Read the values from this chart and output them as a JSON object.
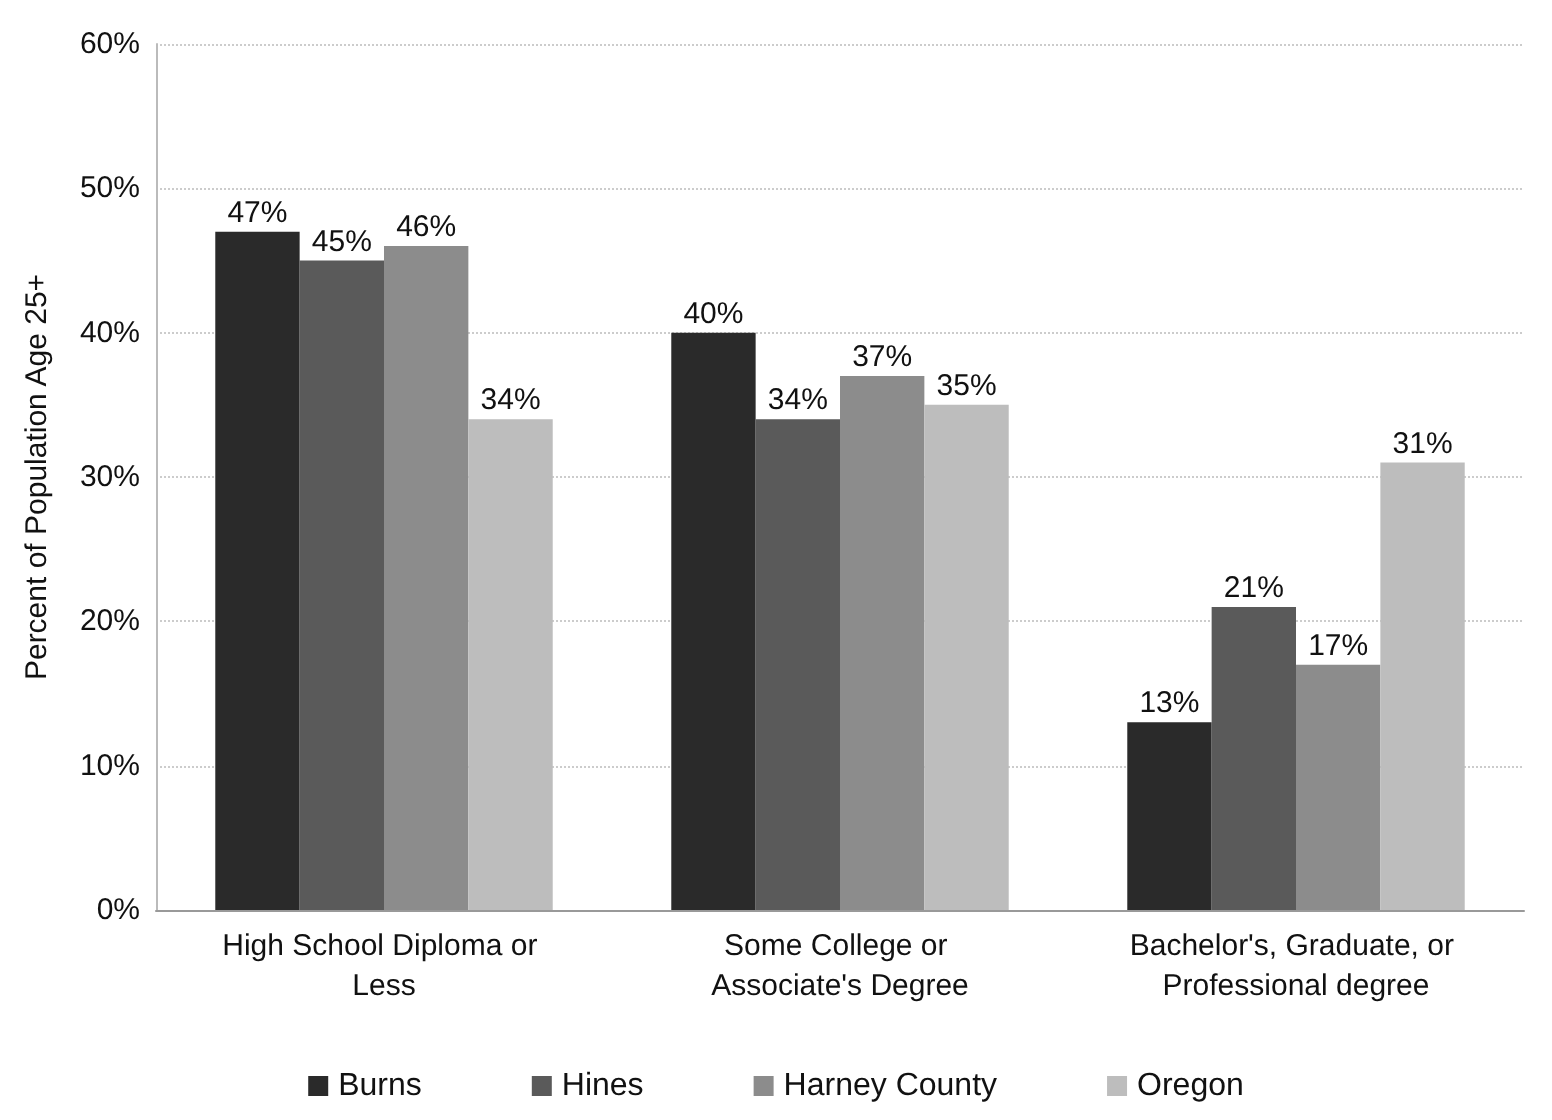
{
  "chart_data": {
    "type": "bar",
    "ylabel": "Percent of Population Age 25+",
    "categories": [
      "High School Diploma or Less",
      "Some College or Associate's Degree",
      "Bachelor's, Graduate, or Professional degree"
    ],
    "series": [
      {
        "name": "Burns",
        "color": "#2a2a2a",
        "values": [
          47,
          40,
          13
        ],
        "value_labels": [
          "47%",
          "40%",
          "13%"
        ]
      },
      {
        "name": "Hines",
        "color": "#5a5a5a",
        "values": [
          45,
          34,
          21
        ],
        "value_labels": [
          "45%",
          "34%",
          "21%"
        ]
      },
      {
        "name": "Harney County",
        "color": "#8c8c8c",
        "values": [
          46,
          37,
          17
        ],
        "value_labels": [
          "46%",
          "37%",
          "17%"
        ]
      },
      {
        "name": "Oregon",
        "color": "#bdbdbd",
        "values": [
          34,
          35,
          31
        ],
        "value_labels": [
          "34%",
          "35%",
          "31%"
        ]
      }
    ],
    "ylim": [
      0,
      60
    ],
    "yticks": [
      {
        "value": 0,
        "label": "0%"
      },
      {
        "value": 10,
        "label": "10%"
      },
      {
        "value": 20,
        "label": "20%"
      },
      {
        "value": 30,
        "label": "30%"
      },
      {
        "value": 40,
        "label": "40%"
      },
      {
        "value": 50,
        "label": "50%"
      },
      {
        "value": 60,
        "label": "60%"
      }
    ],
    "grid": "y",
    "legend": "bottom"
  }
}
